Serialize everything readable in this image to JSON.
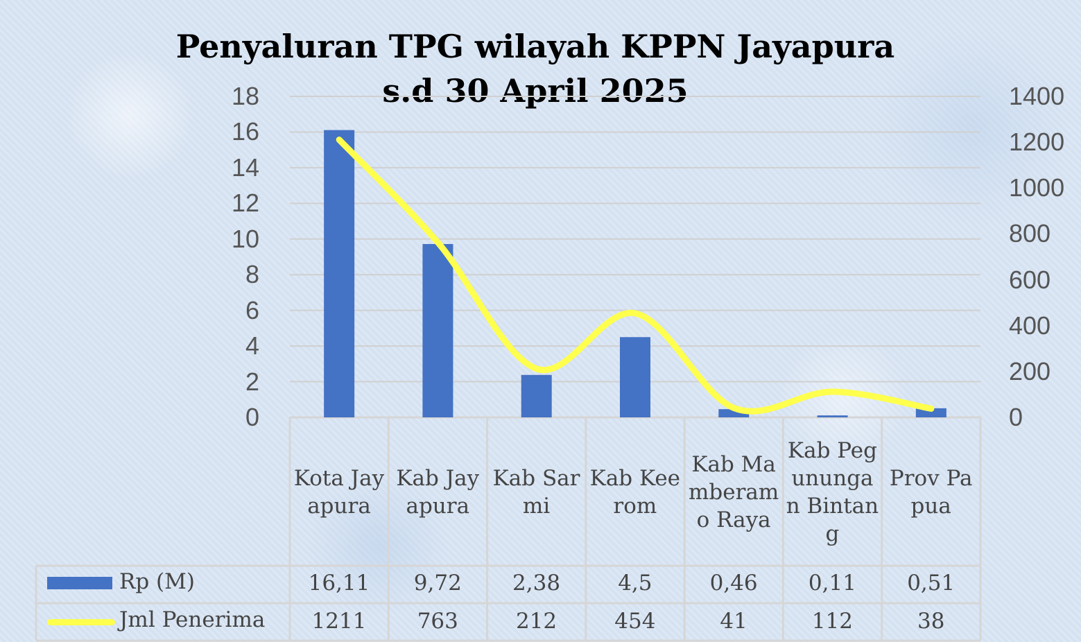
{
  "colors": {
    "bar": "#4472c4",
    "line": "#ffff4d",
    "grid": "#d0d0d0",
    "table_border": "#d6d6d6"
  },
  "chart_data": {
    "type": "bar",
    "title": "Penyaluran TPG wilayah KPPN Jayapura",
    "subtitle": "s.d 30 April 2025",
    "categories": [
      "Kota Jayapura",
      "Kab Jayapura",
      "Kab Sarmi",
      "Kab Keerom",
      "Kab Mamberamo Raya",
      "Kab Pegunungan Bintang",
      "Prov Papua"
    ],
    "series": [
      {
        "name": "Rp (M)",
        "type": "bar",
        "axis": "left",
        "values": [
          16.11,
          9.72,
          2.38,
          4.5,
          0.46,
          0.11,
          0.51
        ],
        "labels": [
          "16,11",
          "9,72",
          "2,38",
          "4,5",
          "0,46",
          "0,11",
          "0,51"
        ]
      },
      {
        "name": "Jml Penerima",
        "type": "line",
        "axis": "right",
        "smooth": true,
        "values": [
          1211,
          763,
          212,
          454,
          41,
          112,
          38
        ],
        "labels": [
          "1211",
          "763",
          "212",
          "454",
          "41",
          "112",
          "38"
        ]
      }
    ],
    "y_left": {
      "min": 0,
      "max": 18,
      "ticks": [
        "0",
        "2",
        "4",
        "6",
        "8",
        "10",
        "12",
        "14",
        "16",
        "18"
      ]
    },
    "y_right": {
      "min": 0,
      "max": 1400,
      "ticks": [
        "0",
        "200",
        "400",
        "600",
        "800",
        "1000",
        "1200",
        "1400"
      ]
    },
    "grid": true,
    "legend": "data table"
  }
}
